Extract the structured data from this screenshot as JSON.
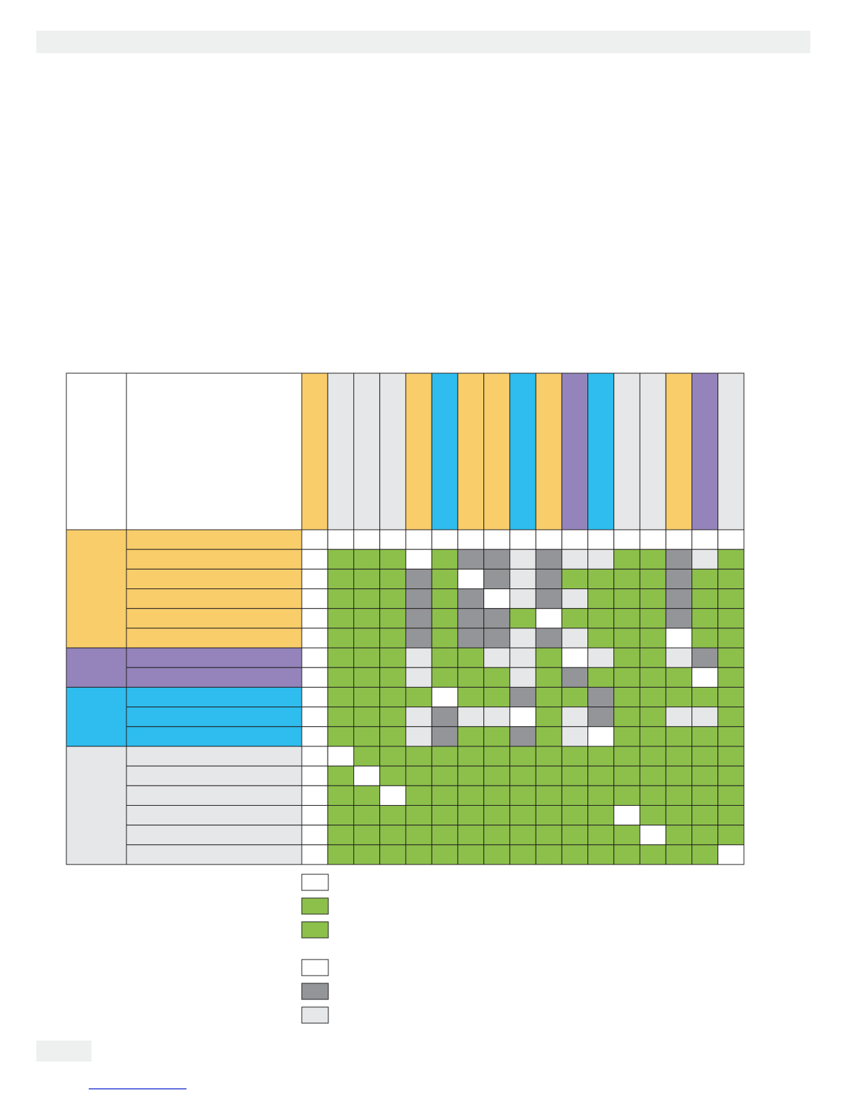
{
  "header_bar": {
    "color": "#eeefef"
  },
  "matrix": {
    "header_colors": [
      "#f8cd6a",
      "#e6e7e8",
      "#e6e7e8",
      "#e6e7e8",
      "#f8cd6a",
      "#2ebdee",
      "#f8cd6a",
      "#f8cd6a",
      "#2ebdee",
      "#f8cd6a",
      "#9484bb",
      "#2ebdee",
      "#e6e7e8",
      "#e6e7e8",
      "#f8cd6a",
      "#9484bb",
      "#e6e7e8"
    ],
    "groups": [
      {
        "color": "#f8cd6a",
        "rows": [
          [
            "#ffffff",
            "#ffffff",
            "#ffffff",
            "#ffffff",
            "#ffffff",
            "#ffffff",
            "#ffffff",
            "#ffffff",
            "#ffffff",
            "#ffffff",
            "#ffffff",
            "#ffffff",
            "#ffffff",
            "#ffffff",
            "#ffffff",
            "#ffffff",
            "#ffffff"
          ],
          [
            "#ffffff",
            "#8cc04b",
            "#8cc04b",
            "#8cc04b",
            "#ffffff",
            "#8cc04b",
            "#939598",
            "#939598",
            "#e6e7e8",
            "#939598",
            "#e6e7e8",
            "#e6e7e8",
            "#8cc04b",
            "#8cc04b",
            "#939598",
            "#e6e7e8",
            "#8cc04b"
          ],
          [
            "#ffffff",
            "#8cc04b",
            "#8cc04b",
            "#8cc04b",
            "#939598",
            "#8cc04b",
            "#ffffff",
            "#939598",
            "#e6e7e8",
            "#939598",
            "#8cc04b",
            "#8cc04b",
            "#8cc04b",
            "#8cc04b",
            "#939598",
            "#8cc04b",
            "#8cc04b"
          ],
          [
            "#ffffff",
            "#8cc04b",
            "#8cc04b",
            "#8cc04b",
            "#939598",
            "#8cc04b",
            "#939598",
            "#ffffff",
            "#e6e7e8",
            "#939598",
            "#e6e7e8",
            "#8cc04b",
            "#8cc04b",
            "#8cc04b",
            "#939598",
            "#8cc04b",
            "#8cc04b"
          ],
          [
            "#ffffff",
            "#8cc04b",
            "#8cc04b",
            "#8cc04b",
            "#939598",
            "#8cc04b",
            "#939598",
            "#939598",
            "#8cc04b",
            "#ffffff",
            "#8cc04b",
            "#8cc04b",
            "#8cc04b",
            "#8cc04b",
            "#939598",
            "#8cc04b",
            "#8cc04b"
          ],
          [
            "#ffffff",
            "#8cc04b",
            "#8cc04b",
            "#8cc04b",
            "#939598",
            "#8cc04b",
            "#939598",
            "#939598",
            "#e6e7e8",
            "#939598",
            "#e6e7e8",
            "#8cc04b",
            "#8cc04b",
            "#8cc04b",
            "#ffffff",
            "#8cc04b",
            "#8cc04b"
          ]
        ]
      },
      {
        "color": "#9484bb",
        "rows": [
          [
            "#ffffff",
            "#8cc04b",
            "#8cc04b",
            "#8cc04b",
            "#e6e7e8",
            "#8cc04b",
            "#8cc04b",
            "#e6e7e8",
            "#e6e7e8",
            "#8cc04b",
            "#ffffff",
            "#e6e7e8",
            "#8cc04b",
            "#8cc04b",
            "#e6e7e8",
            "#939598",
            "#8cc04b"
          ],
          [
            "#ffffff",
            "#8cc04b",
            "#8cc04b",
            "#8cc04b",
            "#e6e7e8",
            "#8cc04b",
            "#8cc04b",
            "#8cc04b",
            "#e6e7e8",
            "#8cc04b",
            "#939598",
            "#8cc04b",
            "#8cc04b",
            "#8cc04b",
            "#8cc04b",
            "#ffffff",
            "#8cc04b"
          ]
        ]
      },
      {
        "color": "#2ebdee",
        "rows": [
          [
            "#ffffff",
            "#8cc04b",
            "#8cc04b",
            "#8cc04b",
            "#8cc04b",
            "#ffffff",
            "#8cc04b",
            "#8cc04b",
            "#939598",
            "#8cc04b",
            "#8cc04b",
            "#939598",
            "#8cc04b",
            "#8cc04b",
            "#8cc04b",
            "#8cc04b",
            "#8cc04b"
          ],
          [
            "#ffffff",
            "#8cc04b",
            "#8cc04b",
            "#8cc04b",
            "#e6e7e8",
            "#939598",
            "#e6e7e8",
            "#e6e7e8",
            "#ffffff",
            "#8cc04b",
            "#e6e7e8",
            "#939598",
            "#8cc04b",
            "#8cc04b",
            "#e6e7e8",
            "#e6e7e8",
            "#8cc04b"
          ],
          [
            "#ffffff",
            "#8cc04b",
            "#8cc04b",
            "#8cc04b",
            "#e6e7e8",
            "#939598",
            "#8cc04b",
            "#8cc04b",
            "#939598",
            "#8cc04b",
            "#e6e7e8",
            "#ffffff",
            "#8cc04b",
            "#8cc04b",
            "#8cc04b",
            "#8cc04b",
            "#8cc04b"
          ]
        ]
      },
      {
        "color": "#e6e7e8",
        "rows": [
          [
            "#ffffff",
            "#ffffff",
            "#8cc04b",
            "#8cc04b",
            "#8cc04b",
            "#8cc04b",
            "#8cc04b",
            "#8cc04b",
            "#8cc04b",
            "#8cc04b",
            "#8cc04b",
            "#8cc04b",
            "#8cc04b",
            "#8cc04b",
            "#8cc04b",
            "#8cc04b",
            "#8cc04b"
          ],
          [
            "#ffffff",
            "#8cc04b",
            "#ffffff",
            "#8cc04b",
            "#8cc04b",
            "#8cc04b",
            "#8cc04b",
            "#8cc04b",
            "#8cc04b",
            "#8cc04b",
            "#8cc04b",
            "#8cc04b",
            "#8cc04b",
            "#8cc04b",
            "#8cc04b",
            "#8cc04b",
            "#8cc04b"
          ],
          [
            "#ffffff",
            "#8cc04b",
            "#8cc04b",
            "#ffffff",
            "#8cc04b",
            "#8cc04b",
            "#8cc04b",
            "#8cc04b",
            "#8cc04b",
            "#8cc04b",
            "#8cc04b",
            "#8cc04b",
            "#8cc04b",
            "#8cc04b",
            "#8cc04b",
            "#8cc04b",
            "#8cc04b"
          ],
          [
            "#ffffff",
            "#8cc04b",
            "#8cc04b",
            "#8cc04b",
            "#8cc04b",
            "#8cc04b",
            "#8cc04b",
            "#8cc04b",
            "#8cc04b",
            "#8cc04b",
            "#8cc04b",
            "#8cc04b",
            "#ffffff",
            "#8cc04b",
            "#8cc04b",
            "#8cc04b",
            "#8cc04b"
          ],
          [
            "#ffffff",
            "#8cc04b",
            "#8cc04b",
            "#8cc04b",
            "#8cc04b",
            "#8cc04b",
            "#8cc04b",
            "#8cc04b",
            "#8cc04b",
            "#8cc04b",
            "#8cc04b",
            "#8cc04b",
            "#8cc04b",
            "#ffffff",
            "#8cc04b",
            "#8cc04b",
            "#8cc04b"
          ],
          [
            "#ffffff",
            "#8cc04b",
            "#8cc04b",
            "#8cc04b",
            "#8cc04b",
            "#8cc04b",
            "#8cc04b",
            "#8cc04b",
            "#8cc04b",
            "#8cc04b",
            "#8cc04b",
            "#8cc04b",
            "#8cc04b",
            "#8cc04b",
            "#8cc04b",
            "#8cc04b",
            "#ffffff"
          ]
        ]
      }
    ]
  },
  "legend": {
    "swatches": [
      [
        "#ffffff",
        "#8cc04b",
        "#8cc04b"
      ],
      [
        "#ffffff",
        "#939598",
        "#e6e7e8"
      ]
    ]
  },
  "footer": {
    "box_color": "#eeefef",
    "link_color": "#2b3fd0"
  }
}
